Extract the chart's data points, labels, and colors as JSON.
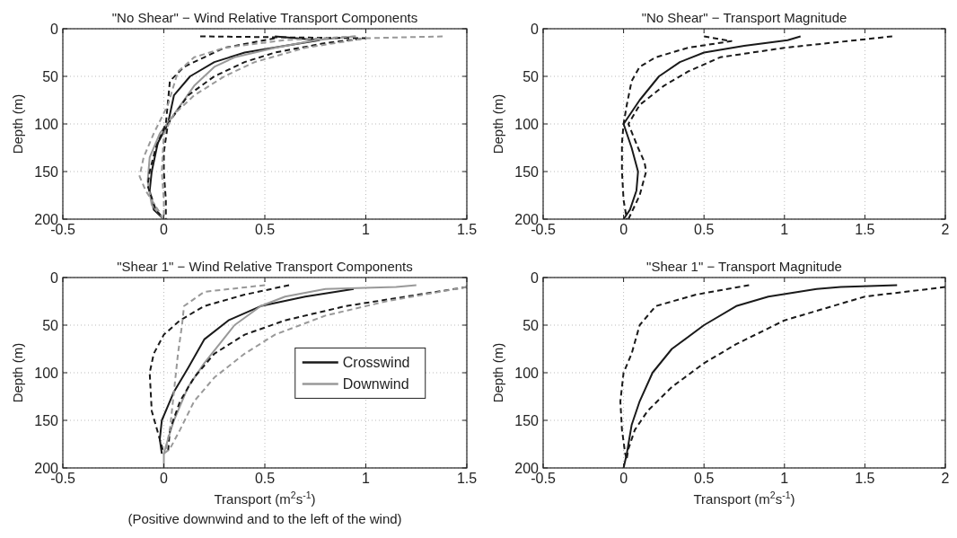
{
  "chart_data": [
    {
      "type": "line",
      "title": "\"No Shear\" − Wind Relative Transport Components",
      "ylabel": "Depth (m)",
      "xlim": [
        -0.5,
        1.5
      ],
      "xticks": [
        -0.5,
        0,
        0.5,
        1,
        1.5
      ],
      "ylim": [
        200,
        0
      ],
      "yticks": [
        0,
        50,
        100,
        150,
        200
      ],
      "grid": true,
      "series": [
        {
          "color": "#1a1a1a",
          "line_style": "solid",
          "x": [
            0.55,
            0.77,
            0.6,
            0.4,
            0.25,
            0.13,
            0.05,
            0.02,
            -0.03,
            -0.06,
            -0.07,
            -0.05,
            0
          ],
          "values": [
            8,
            12,
            18,
            25,
            35,
            50,
            70,
            100,
            120,
            150,
            170,
            190,
            200
          ]
        },
        {
          "color": "#999999",
          "line_style": "solid",
          "x": [
            0.95,
            0.75,
            0.55,
            0.35,
            0.25,
            0.15,
            0.05,
            -0.02,
            -0.07,
            -0.08,
            -0.06,
            0
          ],
          "values": [
            8,
            12,
            20,
            30,
            40,
            60,
            90,
            110,
            135,
            160,
            185,
            200
          ]
        },
        {
          "color": "#1a1a1a",
          "line_style": "dashed",
          "x": [
            0.18,
            1.0,
            0.8,
            0.55,
            0.4,
            0.25,
            0.12,
            0.02,
            0,
            0,
            0.01,
            0.01
          ],
          "values": [
            8,
            10,
            15,
            25,
            35,
            50,
            70,
            100,
            130,
            150,
            180,
            200
          ]
        },
        {
          "color": "#1a1a1a",
          "line_style": "dashed",
          "x": [
            0.55,
            0.3,
            0.2,
            0.1,
            0.03,
            0.01,
            -0.04,
            -0.07,
            -0.08,
            -0.04,
            0
          ],
          "values": [
            10,
            20,
            30,
            40,
            55,
            100,
            125,
            150,
            165,
            190,
            200
          ]
        },
        {
          "color": "#999999",
          "line_style": "dashed",
          "x": [
            1.38,
            1.0,
            0.7,
            0.45,
            0.3,
            0.15,
            0.05,
            0,
            -0.01,
            0,
            0
          ],
          "values": [
            8,
            10,
            20,
            35,
            50,
            70,
            90,
            110,
            150,
            180,
            200
          ]
        },
        {
          "color": "#999999",
          "line_style": "dashed",
          "x": [
            0.95,
            0.6,
            0.3,
            0.15,
            0.07,
            0.02,
            -0.05,
            -0.1,
            -0.12,
            -0.09,
            -0.03,
            0
          ],
          "values": [
            8,
            12,
            20,
            30,
            45,
            80,
            110,
            135,
            155,
            170,
            190,
            200
          ]
        }
      ]
    },
    {
      "type": "line",
      "title": "\"No Shear\" − Transport Magnitude",
      "ylabel": "Depth (m)",
      "xlim": [
        -0.5,
        2
      ],
      "xticks": [
        -0.5,
        0,
        0.5,
        1,
        1.5,
        2
      ],
      "ylim": [
        200,
        0
      ],
      "yticks": [
        0,
        50,
        100,
        150,
        200
      ],
      "grid": true,
      "series": [
        {
          "color": "#1a1a1a",
          "line_style": "solid",
          "x": [
            1.1,
            1.02,
            0.75,
            0.5,
            0.35,
            0.22,
            0.1,
            0,
            0.05,
            0.09,
            0.08,
            0.04,
            0
          ],
          "values": [
            8,
            12,
            18,
            25,
            35,
            50,
            75,
            100,
            125,
            150,
            170,
            190,
            200
          ]
        },
        {
          "color": "#1a1a1a",
          "line_style": "dashed",
          "x": [
            1.67,
            1.0,
            0.6,
            0.4,
            0.25,
            0.1,
            0.03,
            0.09,
            0.13,
            0.14,
            0.1,
            0.03
          ],
          "values": [
            8,
            20,
            30,
            45,
            60,
            80,
            100,
            125,
            140,
            150,
            175,
            200
          ]
        },
        {
          "color": "#1a1a1a",
          "line_style": "dashed",
          "x": [
            0.5,
            0.67,
            0.4,
            0.2,
            0.1,
            0.05,
            0.02,
            0,
            -0.01,
            -0.01,
            0,
            0.02
          ],
          "values": [
            8,
            13,
            20,
            30,
            40,
            55,
            80,
            100,
            120,
            150,
            180,
            200
          ]
        }
      ]
    },
    {
      "type": "line",
      "title": "\"Shear 1\" − Wind Relative Transport Components",
      "ylabel": "Depth (m)",
      "xlabel": "Transport (m$^{2}$s$^{-1}$)",
      "annotations": [
        "(Positive downwind and to the left of the wind)"
      ],
      "xlim": [
        -0.5,
        1.5
      ],
      "xticks": [
        -0.5,
        0,
        0.5,
        1,
        1.5
      ],
      "ylim": [
        200,
        0
      ],
      "yticks": [
        0,
        50,
        100,
        150,
        200
      ],
      "grid": true,
      "legend": "right",
      "series": [
        {
          "name": "Crosswind",
          "color": "#1a1a1a",
          "line_style": "solid",
          "x": [
            0.94,
            0.7,
            0.48,
            0.32,
            0.2,
            0.12,
            0.05,
            0.02,
            -0.01,
            -0.02,
            -0.01
          ],
          "values": [
            12,
            20,
            30,
            45,
            65,
            95,
            120,
            135,
            150,
            170,
            185
          ]
        },
        {
          "name": "Downwind",
          "color": "#999999",
          "line_style": "solid",
          "x": [
            1.25,
            1.15,
            0.8,
            0.6,
            0.48,
            0.35,
            0.2,
            0.12,
            0.05,
            0.02,
            0,
            0
          ],
          "values": [
            8,
            10,
            12,
            20,
            30,
            50,
            90,
            115,
            150,
            170,
            185,
            200
          ]
        },
        {
          "color": "#1a1a1a",
          "line_style": "dashed",
          "x": [
            1.5,
            1.2,
            0.9,
            0.6,
            0.4,
            0.25,
            0.15,
            0.08,
            0.03,
            0.02
          ],
          "values": [
            10,
            20,
            30,
            45,
            60,
            80,
            105,
            130,
            160,
            185
          ]
        },
        {
          "color": "#1a1a1a",
          "line_style": "dashed",
          "x": [
            0.62,
            0.4,
            0.2,
            0.08,
            0,
            -0.05,
            -0.07,
            -0.06,
            -0.02,
            0
          ],
          "values": [
            8,
            18,
            30,
            45,
            60,
            80,
            100,
            140,
            170,
            185
          ]
        },
        {
          "color": "#999999",
          "line_style": "dashed",
          "x": [
            1.5,
            1.1,
            0.8,
            0.55,
            0.4,
            0.25,
            0.15,
            0.08,
            0.03,
            0
          ],
          "values": [
            10,
            25,
            40,
            60,
            80,
            105,
            130,
            160,
            180,
            185
          ]
        },
        {
          "color": "#999999",
          "line_style": "dashed",
          "x": [
            0.5,
            0.2,
            0.1,
            0.09,
            0.07,
            0.05,
            0.03,
            0.01,
            0
          ],
          "values": [
            8,
            15,
            30,
            50,
            80,
            120,
            160,
            180,
            185
          ]
        }
      ]
    },
    {
      "type": "line",
      "title": "\"Shear 1\" − Transport Magnitude",
      "ylabel": "Depth (m)",
      "xlabel": "Transport (m$^{2}$s$^{-1}$)",
      "xlim": [
        -0.5,
        2
      ],
      "xticks": [
        -0.5,
        0,
        0.5,
        1,
        1.5,
        2
      ],
      "ylim": [
        200,
        0
      ],
      "yticks": [
        0,
        50,
        100,
        150,
        200
      ],
      "grid": true,
      "series": [
        {
          "color": "#1a1a1a",
          "line_style": "solid",
          "x": [
            1.7,
            1.35,
            1.2,
            0.9,
            0.7,
            0.5,
            0.3,
            0.18,
            0.1,
            0.05,
            0.02,
            0
          ],
          "values": [
            8,
            10,
            12,
            20,
            30,
            50,
            75,
            100,
            130,
            155,
            185,
            200
          ]
        },
        {
          "color": "#1a1a1a",
          "line_style": "dashed",
          "x": [
            2,
            1.5,
            1.0,
            0.7,
            0.5,
            0.3,
            0.15,
            0.07,
            0.03,
            0.02
          ],
          "values": [
            10,
            20,
            45,
            70,
            90,
            115,
            140,
            160,
            180,
            190
          ]
        },
        {
          "color": "#1a1a1a",
          "line_style": "dashed",
          "x": [
            0.78,
            0.45,
            0.2,
            0.1,
            0.05,
            0,
            -0.02,
            -0.01,
            0.01,
            0.02
          ],
          "values": [
            8,
            18,
            30,
            50,
            80,
            100,
            130,
            160,
            185,
            190
          ]
        }
      ]
    }
  ]
}
